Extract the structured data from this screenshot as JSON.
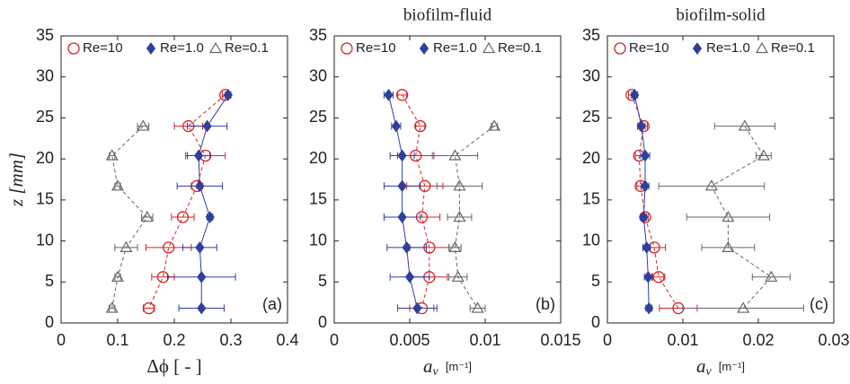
{
  "chart_data": [
    {
      "type": "scatter",
      "annotation": "(a)",
      "x_label": "Δϕ [ - ]",
      "y_label": "z [mm]",
      "xlim": [
        0,
        0.4
      ],
      "xticks": [
        0,
        0.1,
        0.2,
        0.3,
        0.4
      ],
      "ylim": [
        0,
        35
      ],
      "yticks": [
        0,
        5,
        10,
        15,
        20,
        25,
        30,
        35
      ],
      "series": [
        {
          "name": "Re=10",
          "color": "#d62222",
          "marker": "circle",
          "linestyle": "dashed",
          "x": [
            0.29,
            0.225,
            0.255,
            0.24,
            0.215,
            0.19,
            0.18,
            0.155
          ],
          "y": [
            27.8,
            24,
            20.4,
            16.7,
            12.9,
            9.2,
            5.6,
            1.8
          ],
          "xerr": [
            0.005,
            0.025,
            0.035,
            0.01,
            0.02,
            0.04,
            0.02,
            0.01
          ]
        },
        {
          "name": "Re=1.0",
          "color": "#2e3f9c",
          "marker": "diamond",
          "linestyle": "solid",
          "x": [
            0.295,
            0.258,
            0.243,
            0.245,
            0.263,
            0.245,
            0.248,
            0.248
          ],
          "y": [
            27.8,
            24,
            20.4,
            16.7,
            12.9,
            9.2,
            5.6,
            1.8
          ],
          "xerr": [
            0.005,
            0.035,
            0.02,
            0.04,
            0.005,
            0.03,
            0.06,
            0.04
          ]
        },
        {
          "name": "Re=0.1",
          "color": "#666666",
          "marker": "triangle",
          "linestyle": "dashed",
          "x": [
            0.145,
            0.09,
            0.1,
            0.152,
            0.115,
            0.1,
            0.09
          ],
          "y": [
            24,
            20.4,
            16.7,
            12.9,
            9.2,
            5.6,
            1.8
          ],
          "xerr": [
            0.01,
            0.005,
            0.005,
            0.01,
            0.02,
            0.005,
            0.005
          ]
        }
      ]
    },
    {
      "type": "scatter",
      "title": "biofilm-fluid",
      "annotation": "(b)",
      "x_label": {
        "symbol": "a",
        "subscript": "v",
        "unit": "[m⁻¹]"
      },
      "xlim": [
        0,
        0.015
      ],
      "xticks": [
        0,
        0.005,
        0.01,
        0.015
      ],
      "ylim": [
        0,
        35
      ],
      "yticks": [
        0,
        5,
        10,
        15,
        20,
        25,
        30,
        35
      ],
      "series": [
        {
          "name": "Re=10",
          "color": "#d62222",
          "marker": "circle",
          "linestyle": "dashed",
          "x": [
            0.0045,
            0.0057,
            0.0054,
            0.006,
            0.0058,
            0.0063,
            0.0063,
            0.0058
          ],
          "y": [
            27.8,
            24,
            20.4,
            16.7,
            12.9,
            9.2,
            5.6,
            1.8
          ],
          "xerr": [
            0.0003,
            0.0003,
            0.0012,
            0.0012,
            0.0012,
            0.0013,
            0.0012,
            0.0008
          ]
        },
        {
          "name": "Re=1.0",
          "color": "#2e3f9c",
          "marker": "diamond",
          "linestyle": "solid",
          "x": [
            0.0036,
            0.0041,
            0.0045,
            0.0045,
            0.0045,
            0.0048,
            0.005,
            0.0055
          ],
          "y": [
            27.8,
            24,
            20.4,
            16.7,
            12.9,
            9.2,
            5.6,
            1.8
          ],
          "xerr": [
            0.0003,
            0.0003,
            0.0008,
            0.0012,
            0.0012,
            0.0013,
            0.0013,
            0.0013
          ]
        },
        {
          "name": "Re=0.1",
          "color": "#666666",
          "marker": "triangle",
          "linestyle": "dashed",
          "x": [
            0.0106,
            0.008,
            0.0083,
            0.0083,
            0.008,
            0.0082,
            0.0095
          ],
          "y": [
            24,
            20.4,
            16.7,
            12.9,
            9.2,
            5.6,
            1.8
          ],
          "xerr": [
            0.0002,
            0.0015,
            0.0015,
            0.0008,
            0.0004,
            0.0006,
            0.0005
          ]
        }
      ]
    },
    {
      "type": "scatter",
      "title": "biofilm-solid",
      "annotation": "(c)",
      "x_label": {
        "symbol": "a",
        "subscript": "v",
        "unit": "[m⁻¹]"
      },
      "xlim": [
        0,
        0.03
      ],
      "xticks": [
        0,
        0.01,
        0.02,
        0.03
      ],
      "ylim": [
        0,
        35
      ],
      "yticks": [
        0,
        5,
        10,
        15,
        20,
        25,
        30,
        35
      ],
      "series": [
        {
          "name": "Re=10",
          "color": "#d62222",
          "marker": "circle",
          "linestyle": "dashed",
          "x": [
            0.0032,
            0.0048,
            0.0042,
            0.0044,
            0.005,
            0.0062,
            0.0068,
            0.0094
          ],
          "y": [
            27.8,
            24,
            20.4,
            16.7,
            12.9,
            9.2,
            5.6,
            1.8
          ],
          "xerr": [
            0.0004,
            0.0005,
            0.0005,
            0.0005,
            0.0004,
            0.0015,
            0.0008,
            0.0025
          ]
        },
        {
          "name": "Re=1.0",
          "color": "#2e3f9c",
          "marker": "diamond",
          "linestyle": "solid",
          "x": [
            0.0036,
            0.0045,
            0.005,
            0.005,
            0.0048,
            0.0052,
            0.0054,
            0.0055
          ],
          "y": [
            27.8,
            24,
            20.4,
            16.7,
            12.9,
            9.2,
            5.6,
            1.8
          ],
          "xerr": [
            0.0004,
            0.0005,
            0.0006,
            0.0005,
            0.0004,
            0.0005,
            0.0005,
            0.0004
          ]
        },
        {
          "name": "Re=0.1",
          "color": "#666666",
          "marker": "triangle",
          "linestyle": "dashed",
          "x": [
            0.0182,
            0.0207,
            0.0138,
            0.016,
            0.016,
            0.0217,
            0.018
          ],
          "y": [
            24,
            20.4,
            16.7,
            12.9,
            9.2,
            5.6,
            1.8
          ],
          "xerr": [
            0.004,
            0.001,
            0.007,
            0.0055,
            0.0035,
            0.0025,
            0.008
          ]
        }
      ]
    }
  ]
}
